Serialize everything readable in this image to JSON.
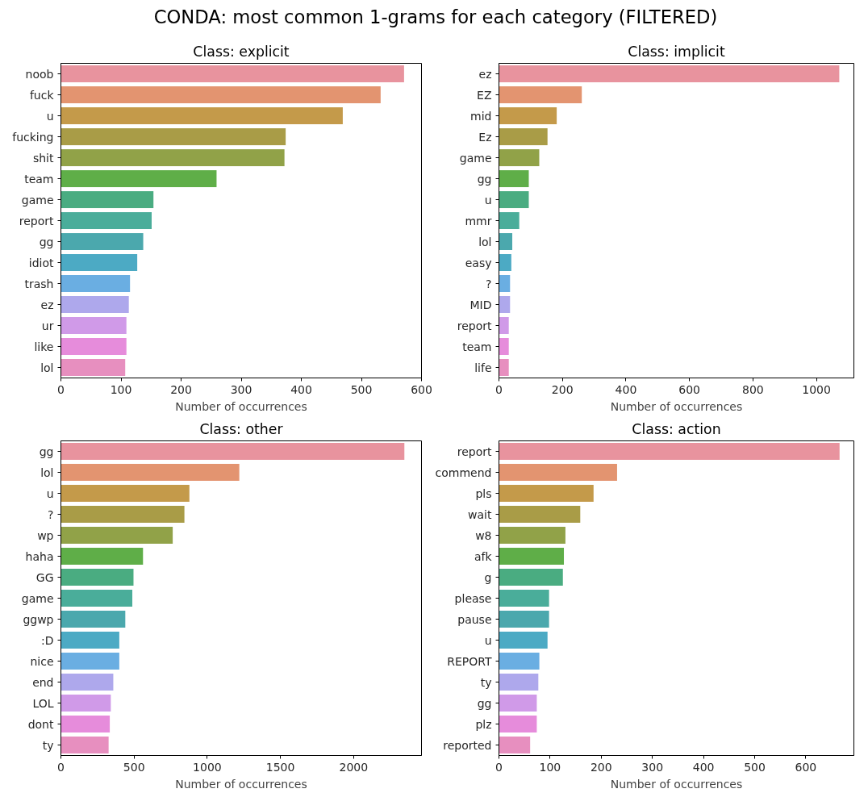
{
  "chart_data": [
    {
      "type": "bar",
      "orientation": "horizontal",
      "title": "Class: explicit",
      "xlabel": "Number of occurrences",
      "annotations": [
        "CONDA: most common 1-grams for each category (FILTERED)"
      ],
      "xlim": [
        0,
        600
      ],
      "xticks": [
        0,
        100,
        200,
        300,
        400,
        500,
        600
      ],
      "categories": [
        "noob",
        "fuck",
        "u",
        "fucking",
        "shit",
        "team",
        "game",
        "report",
        "gg",
        "idiot",
        "trash",
        "ez",
        "ur",
        "like",
        "lol"
      ],
      "values": [
        571,
        532,
        469,
        374,
        372,
        259,
        154,
        151,
        137,
        127,
        115,
        113,
        109,
        109,
        107
      ],
      "colors": [
        "#e8939e",
        "#e39470",
        "#c49a4a",
        "#a99c47",
        "#91a248",
        "#5fae48",
        "#4aac81",
        "#4aad9a",
        "#4ba8ad",
        "#4caac4",
        "#6aaee2",
        "#aea8ec",
        "#d09ae8",
        "#e68cdb",
        "#e78fbf"
      ],
      "grid": false
    },
    {
      "type": "bar",
      "orientation": "horizontal",
      "title": "Class: implicit",
      "xlabel": "Number of occurrences",
      "xlim": [
        0,
        1118
      ],
      "xticks": [
        0,
        200,
        400,
        600,
        800,
        1000
      ],
      "categories": [
        "ez",
        "EZ",
        "mid",
        "Ez",
        "game",
        "gg",
        "u",
        "mmr",
        "lol",
        "easy",
        "?",
        "MID",
        "report",
        "team",
        "life"
      ],
      "values": [
        1072,
        261,
        182,
        153,
        127,
        94,
        94,
        64,
        42,
        39,
        35,
        35,
        31,
        31,
        31
      ],
      "colors": [
        "#e8939e",
        "#e39470",
        "#c49a4a",
        "#a99c47",
        "#91a248",
        "#5fae48",
        "#4aac81",
        "#4aad9a",
        "#4ba8ad",
        "#4caac4",
        "#6aaee2",
        "#aea8ec",
        "#d09ae8",
        "#e68cdb",
        "#e78fbf"
      ],
      "grid": false
    },
    {
      "type": "bar",
      "orientation": "horizontal",
      "title": "Class: other",
      "xlabel": "Number of occurrences",
      "xlim": [
        0,
        2464
      ],
      "xticks": [
        0,
        500,
        1000,
        1500,
        2000
      ],
      "categories": [
        "gg",
        "lol",
        "u",
        "?",
        "wp",
        "haha",
        "GG",
        "game",
        "ggwp",
        ":D",
        "nice",
        "end",
        "LOL",
        "dont",
        "ty"
      ],
      "values": [
        2347,
        1219,
        878,
        844,
        764,
        561,
        496,
        488,
        440,
        399,
        399,
        358,
        341,
        334,
        326
      ],
      "colors": [
        "#e8939e",
        "#e39470",
        "#c49a4a",
        "#a99c47",
        "#91a248",
        "#5fae48",
        "#4aac81",
        "#4aad9a",
        "#4ba8ad",
        "#4caac4",
        "#6aaee2",
        "#aea8ec",
        "#d09ae8",
        "#e68cdb",
        "#e78fbf"
      ],
      "grid": false
    },
    {
      "type": "bar",
      "orientation": "horizontal",
      "title": "Class: action",
      "xlabel": "Number of occurrences",
      "xlim": [
        0,
        694
      ],
      "xticks": [
        0,
        100,
        200,
        300,
        400,
        500,
        600
      ],
      "categories": [
        "report",
        "commend",
        "pls",
        "wait",
        "w8",
        "afk",
        "g",
        "please",
        "pause",
        "u",
        "REPORT",
        "ty",
        "gg",
        "plz",
        "reported"
      ],
      "values": [
        666,
        231,
        185,
        159,
        130,
        127,
        125,
        98,
        98,
        95,
        79,
        77,
        74,
        74,
        61
      ],
      "colors": [
        "#e8939e",
        "#e39470",
        "#c49a4a",
        "#a99c47",
        "#91a248",
        "#5fae48",
        "#4aac81",
        "#4aad9a",
        "#4ba8ad",
        "#4caac4",
        "#6aaee2",
        "#aea8ec",
        "#d09ae8",
        "#e68cdb",
        "#e78fbf"
      ],
      "grid": false
    }
  ]
}
